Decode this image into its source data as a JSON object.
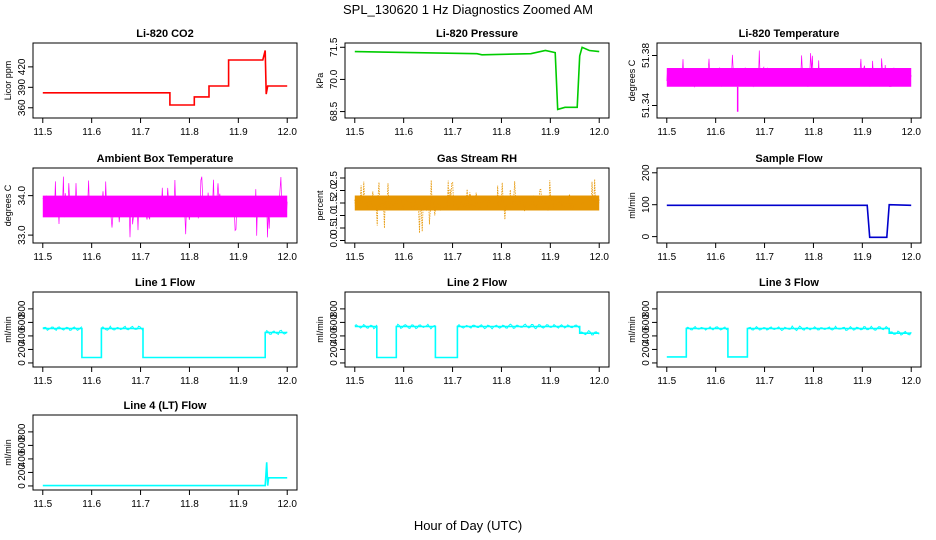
{
  "figure": {
    "title": "SPL_130620  1 Hz Diagnostics Zoomed AM",
    "xlabel": "Hour of Day (UTC)"
  },
  "chart_data": [
    {
      "type": "line",
      "title": "Li-820 CO2",
      "ylabel": "Licor ppm",
      "color": "#ff0000",
      "xlim": [
        11.48,
        12.02
      ],
      "ylim": [
        345,
        455
      ],
      "xticks": [
        "11.5",
        "11.6",
        "11.7",
        "11.8",
        "11.9",
        "12.0"
      ],
      "yticks": [
        "360",
        "390",
        "420"
      ],
      "series": [
        {
          "x": [
            11.5,
            11.76,
            11.76,
            11.81,
            11.81,
            11.84,
            11.84,
            11.88,
            11.88,
            11.95,
            11.955,
            11.957,
            11.96,
            12.0
          ],
          "y": [
            382,
            382,
            364,
            364,
            376,
            376,
            392,
            392,
            430,
            430,
            444,
            380,
            392,
            392
          ]
        }
      ]
    },
    {
      "type": "line",
      "title": "Li-820 Pressure",
      "ylabel": "kPa",
      "color": "#00cc00",
      "xlim": [
        11.48,
        12.02
      ],
      "ylim": [
        68.2,
        71.7
      ],
      "xticks": [
        "11.5",
        "11.6",
        "11.7",
        "11.8",
        "11.9",
        "12.0"
      ],
      "yticks": [
        "68.5",
        "70.0",
        "71.5"
      ],
      "series": [
        {
          "x": [
            11.5,
            11.75,
            11.76,
            11.86,
            11.89,
            11.91,
            11.915,
            11.93,
            11.955,
            11.96,
            11.965,
            11.98,
            12.0
          ],
          "y": [
            71.3,
            71.2,
            71.15,
            71.2,
            71.35,
            71.25,
            68.6,
            68.7,
            68.7,
            71.1,
            71.5,
            71.35,
            71.3
          ]
        }
      ]
    },
    {
      "type": "line",
      "title": "Li-820 Temperature",
      "ylabel": "degrees C",
      "color": "#ff00ff",
      "xlim": [
        11.48,
        12.02
      ],
      "ylim": [
        51.33,
        51.39
      ],
      "xticks": [
        "11.5",
        "11.6",
        "11.7",
        "11.8",
        "11.9",
        "12.0"
      ],
      "yticks": [
        "51.34",
        "51.38"
      ],
      "series": [
        {
          "x": [
            11.5,
            12.0
          ],
          "y_low": 51.355,
          "y_high": 51.37,
          "spike_max": 51.385,
          "dip_x": 11.645,
          "dip_y": 51.335
        }
      ]
    },
    {
      "type": "line",
      "title": "Ambient Box Temperature",
      "ylabel": "degrees C",
      "color": "#ff00ff",
      "xlim": [
        11.48,
        12.02
      ],
      "ylim": [
        32.8,
        34.7
      ],
      "xticks": [
        "11.5",
        "11.6",
        "11.7",
        "11.8",
        "11.9",
        "12.0"
      ],
      "yticks": [
        "33.0",
        "34.0"
      ],
      "series": [
        {
          "x": [
            11.5,
            12.0
          ],
          "y_low": 33.45,
          "y_high": 34.0,
          "spike_max": 34.5,
          "spike_min": 32.9
        }
      ]
    },
    {
      "type": "line",
      "title": "Gas Stream RH",
      "ylabel": "percent",
      "color": "#e69500",
      "xlim": [
        11.48,
        12.02
      ],
      "ylim": [
        -0.1,
        2.9
      ],
      "xticks": [
        "11.5",
        "11.6",
        "11.7",
        "11.8",
        "11.9",
        "12.0"
      ],
      "yticks": [
        "0.0",
        "0.5",
        "1.0",
        "1.5",
        "2.0",
        "2.5"
      ],
      "series": [
        {
          "x": [
            11.5,
            12.0
          ],
          "y_low": 1.2,
          "y_high": 1.8,
          "spike_max": 2.5,
          "spike_min": 0.05
        }
      ]
    },
    {
      "type": "line",
      "title": "Sample Flow",
      "ylabel": "ml/min",
      "color": "#0000cc",
      "xlim": [
        11.48,
        12.02
      ],
      "ylim": [
        -20,
        215
      ],
      "xticks": [
        "11.5",
        "11.6",
        "11.7",
        "11.8",
        "11.9",
        "12.0"
      ],
      "yticks": [
        "0",
        "100",
        "200"
      ],
      "series": [
        {
          "x": [
            11.5,
            11.91,
            11.915,
            11.95,
            11.955,
            12.0
          ],
          "y": [
            98,
            98,
            -2,
            -2,
            100,
            98
          ]
        }
      ]
    },
    {
      "type": "line",
      "title": "Line 1 Flow",
      "ylabel": "ml/min",
      "color": "#00ffff",
      "xlim": [
        11.48,
        12.02
      ],
      "ylim": [
        -60,
        1050
      ],
      "xticks": [
        "11.5",
        "11.6",
        "11.7",
        "11.8",
        "11.9",
        "12.0"
      ],
      "yticks": [
        "0",
        "200",
        "400",
        "600",
        "800"
      ],
      "series": [
        {
          "x": [
            11.5,
            11.58,
            11.58,
            11.62,
            11.62,
            11.705,
            11.705,
            11.955,
            11.955,
            12.0
          ],
          "y": [
            510,
            510,
            80,
            80,
            510,
            510,
            80,
            80,
            450,
            450
          ],
          "noisy_segments": [
            [
              11.5,
              11.58,
              510,
              40
            ],
            [
              11.62,
              11.705,
              510,
              40
            ],
            [
              11.955,
              12.0,
              450,
              50
            ]
          ]
        }
      ]
    },
    {
      "type": "line",
      "title": "Line 2 Flow",
      "ylabel": "ml/min",
      "color": "#00ffff",
      "xlim": [
        11.48,
        12.02
      ],
      "ylim": [
        -60,
        1050
      ],
      "xticks": [
        "11.5",
        "11.6",
        "11.7",
        "11.8",
        "11.9",
        "12.0"
      ],
      "yticks": [
        "0",
        "200",
        "400",
        "600",
        "800"
      ],
      "series": [
        {
          "x": [
            11.5,
            11.545,
            11.545,
            11.585,
            11.585,
            11.665,
            11.665,
            11.71,
            11.71,
            11.96,
            11.96,
            12.0
          ],
          "y": [
            540,
            540,
            80,
            80,
            540,
            540,
            80,
            80,
            540,
            540,
            440,
            440
          ],
          "noisy_segments": [
            [
              11.5,
              11.545,
              540,
              40
            ],
            [
              11.585,
              11.665,
              540,
              40
            ],
            [
              11.71,
              11.96,
              540,
              40
            ],
            [
              11.96,
              12.0,
              440,
              50
            ]
          ]
        }
      ]
    },
    {
      "type": "line",
      "title": "Line 3 Flow",
      "ylabel": "ml/min",
      "color": "#00ffff",
      "xlim": [
        11.48,
        12.02
      ],
      "ylim": [
        -60,
        1050
      ],
      "xticks": [
        "11.5",
        "11.6",
        "11.7",
        "11.8",
        "11.9",
        "12.0"
      ],
      "yticks": [
        "0",
        "200",
        "400",
        "600",
        "800"
      ],
      "series": [
        {
          "x": [
            11.5,
            11.54,
            11.54,
            11.625,
            11.625,
            11.665,
            11.665,
            11.955,
            11.955,
            12.0
          ],
          "y": [
            90,
            90,
            510,
            510,
            90,
            90,
            510,
            510,
            440,
            440
          ],
          "noisy_segments": [
            [
              11.54,
              11.625,
              510,
              35
            ],
            [
              11.665,
              11.955,
              510,
              40
            ],
            [
              11.955,
              12.0,
              440,
              40
            ]
          ]
        }
      ]
    },
    {
      "type": "line",
      "title": "Line 4 (LT) Flow",
      "ylabel": "ml/min",
      "color": "#00ffff",
      "xlim": [
        11.48,
        12.02
      ],
      "ylim": [
        -60,
        1050
      ],
      "xticks": [
        "11.5",
        "11.6",
        "11.7",
        "11.8",
        "11.9",
        "12.0"
      ],
      "yticks": [
        "0",
        "200",
        "400",
        "600",
        "800"
      ],
      "series": [
        {
          "x": [
            11.5,
            11.955,
            11.958,
            11.96,
            11.962,
            12.0
          ],
          "y": [
            5,
            5,
            350,
            5,
            120,
            120
          ]
        }
      ]
    }
  ]
}
